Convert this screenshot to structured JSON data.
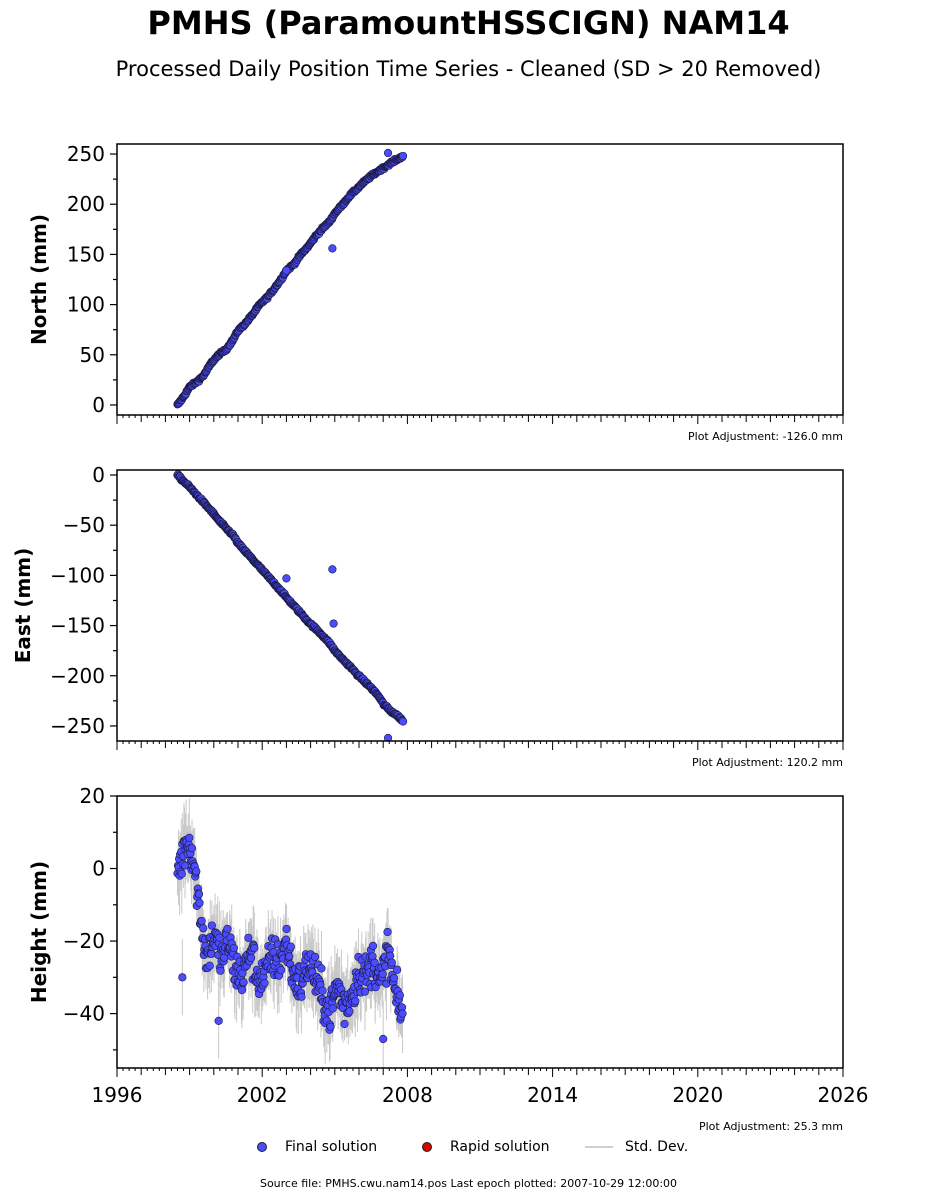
{
  "title": "PMHS (ParamountHSSCIGN) NAM14",
  "subtitle": "Processed Daily Position Time Series - Cleaned (SD > 20 Removed)",
  "colors": {
    "final": "#4b4bff",
    "rapid": "#e00000",
    "stddev": "#c8c8c8",
    "edge": "#1a1a40"
  },
  "chart_data": [
    {
      "type": "scatter",
      "ylabel": "North (mm)",
      "xlim": [
        1996,
        2026
      ],
      "ylim": [
        -10,
        260
      ],
      "yticks": [
        0,
        50,
        100,
        150,
        200,
        250
      ],
      "adjustment": "Plot Adjustment: -126.0 mm",
      "series": [
        {
          "name": "Final solution",
          "x": [
            1998.5,
            1998.6,
            1998.8,
            1999.0,
            1999.3,
            1999.6,
            1999.9,
            2000.2,
            2000.5,
            2000.8,
            2001.0,
            2001.3,
            2001.6,
            2001.9,
            2002.2,
            2002.5,
            2002.8,
            2003.0,
            2003.3,
            2003.6,
            2003.9,
            2004.2,
            2004.5,
            2004.8,
            2005.0,
            2005.3,
            2005.6,
            2005.9,
            2006.2,
            2006.5,
            2006.8,
            2007.0,
            2007.3,
            2007.6,
            2007.82
          ],
          "y": [
            0,
            3,
            10,
            18,
            23,
            30,
            42,
            50,
            55,
            65,
            74,
            81,
            90,
            100,
            107,
            116,
            126,
            134,
            140,
            150,
            158,
            168,
            176,
            183,
            191,
            199,
            208,
            215,
            222,
            228,
            233,
            236,
            241,
            245,
            248
          ]
        }
      ],
      "outliers": {
        "x": [
          2003.0,
          2004.9,
          2007.2
        ],
        "y": [
          134,
          156,
          251
        ]
      }
    },
    {
      "type": "scatter",
      "ylabel": "East (mm)",
      "xlim": [
        1996,
        2026
      ],
      "ylim": [
        -265,
        5
      ],
      "yticks": [
        -250,
        -200,
        -150,
        -100,
        -50,
        0
      ],
      "adjustment": "Plot Adjustment: 120.2 mm",
      "series": [
        {
          "name": "Final solution",
          "x": [
            1998.5,
            1998.7,
            1999.0,
            1999.3,
            1999.6,
            1999.9,
            2000.2,
            2000.5,
            2000.8,
            2001.0,
            2001.3,
            2001.6,
            2001.9,
            2002.2,
            2002.5,
            2002.8,
            2003.0,
            2003.3,
            2003.6,
            2003.9,
            2004.2,
            2004.5,
            2004.8,
            2005.0,
            2005.3,
            2005.6,
            2005.9,
            2006.2,
            2006.5,
            2006.8,
            2007.0,
            2007.3,
            2007.6,
            2007.82
          ],
          "y": [
            0,
            -5,
            -12,
            -20,
            -28,
            -36,
            -45,
            -53,
            -60,
            -68,
            -76,
            -84,
            -92,
            -100,
            -108,
            -116,
            -122,
            -130,
            -138,
            -146,
            -153,
            -160,
            -168,
            -175,
            -183,
            -190,
            -198,
            -205,
            -212,
            -220,
            -228,
            -235,
            -240,
            -245
          ]
        }
      ],
      "outliers": {
        "x": [
          2003.0,
          2004.9,
          2004.95,
          2007.2
        ],
        "y": [
          -103,
          -94,
          -148,
          -262
        ]
      }
    },
    {
      "type": "scatter",
      "ylabel": "Height (mm)",
      "xlim": [
        1996,
        2026
      ],
      "ylim": [
        -55,
        20
      ],
      "yticks": [
        -40,
        -20,
        0,
        20
      ],
      "adjustment": "Plot Adjustment: 25.3 mm",
      "series": [
        {
          "name": "Final solution",
          "x": [
            1998.5,
            1998.7,
            1998.9,
            1999.1,
            1999.3,
            1999.5,
            1999.7,
            2000.0,
            2000.3,
            2000.6,
            2000.9,
            2001.2,
            2001.5,
            2001.8,
            2002.1,
            2002.4,
            2002.7,
            2003.0,
            2003.3,
            2003.6,
            2003.9,
            2004.2,
            2004.5,
            2004.8,
            2005.1,
            2005.4,
            2005.7,
            2006.0,
            2006.3,
            2006.6,
            2006.9,
            2007.2,
            2007.5,
            2007.8
          ],
          "y": [
            0,
            3,
            8,
            5,
            -5,
            -15,
            -25,
            -18,
            -25,
            -20,
            -28,
            -30,
            -22,
            -30,
            -30,
            -24,
            -26,
            -20,
            -30,
            -32,
            -26,
            -30,
            -36,
            -40,
            -32,
            -38,
            -35,
            -28,
            -30,
            -25,
            -32,
            -22,
            -35,
            -40
          ]
        }
      ],
      "outliers": {
        "x": [
          1998.7,
          2000.2,
          2007.0
        ],
        "y": [
          -30,
          -42,
          -47
        ]
      },
      "xticks": [
        1996,
        2002,
        2008,
        2014,
        2020,
        2026
      ]
    }
  ],
  "legend": {
    "final_label": "Final solution",
    "rapid_label": "Rapid solution",
    "std_label": "Std. Dev."
  },
  "source": "Source file: PMHS.cwu.nam14.pos  Last epoch plotted: 2007-10-29 12:00:00"
}
